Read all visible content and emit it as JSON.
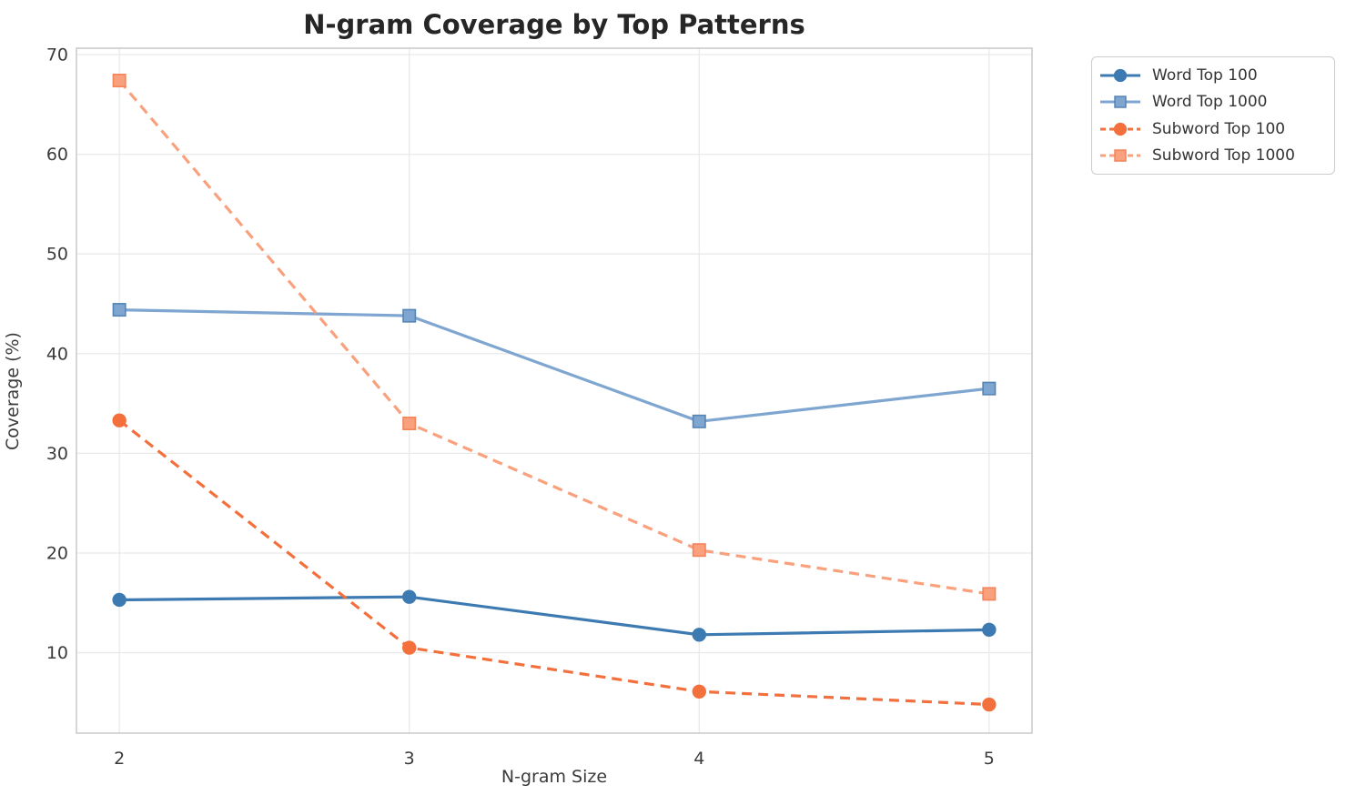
{
  "title": "N-gram Coverage by Top Patterns",
  "chart_data": {
    "type": "line",
    "title": "N-gram Coverage by Top Patterns",
    "xlabel": "N-gram Size",
    "ylabel": "Coverage (%)",
    "x": [
      2,
      3,
      4,
      5
    ],
    "xtick_labels": [
      "2",
      "3",
      "4",
      "5"
    ],
    "yticks": [
      10,
      20,
      30,
      40,
      50,
      60,
      70
    ],
    "xlim": [
      1.852,
      5.148
    ],
    "ylim": [
      1.93,
      70.64
    ],
    "grid": true,
    "legend_position": "outside-top-right",
    "colors": {
      "background": "#ffffff",
      "gridline": "#e9e9e9",
      "spine": "#cccccc",
      "tick_text": "#3b3b3b",
      "title_text": "#262626"
    },
    "series": [
      {
        "name": "Word Top 100",
        "color": "#3d7ab1",
        "marker": "circle",
        "dash": "solid",
        "values": [
          15.3,
          15.6,
          11.8,
          12.3
        ]
      },
      {
        "name": "Word Top 1000",
        "color": "#7fa6d0",
        "marker": "square",
        "dash": "solid",
        "marker_edge": "#5585b5",
        "values": [
          44.4,
          43.8,
          33.2,
          36.5
        ]
      },
      {
        "name": "Subword Top 100",
        "color": "#f3703d",
        "marker": "circle",
        "dash": "dashed",
        "values": [
          33.3,
          10.5,
          6.1,
          4.8
        ]
      },
      {
        "name": "Subword Top 1000",
        "color": "#f9a07c",
        "marker": "square",
        "dash": "dashed",
        "marker_edge": "#f5845b",
        "values": [
          67.4,
          33.0,
          20.3,
          15.9
        ]
      }
    ]
  }
}
